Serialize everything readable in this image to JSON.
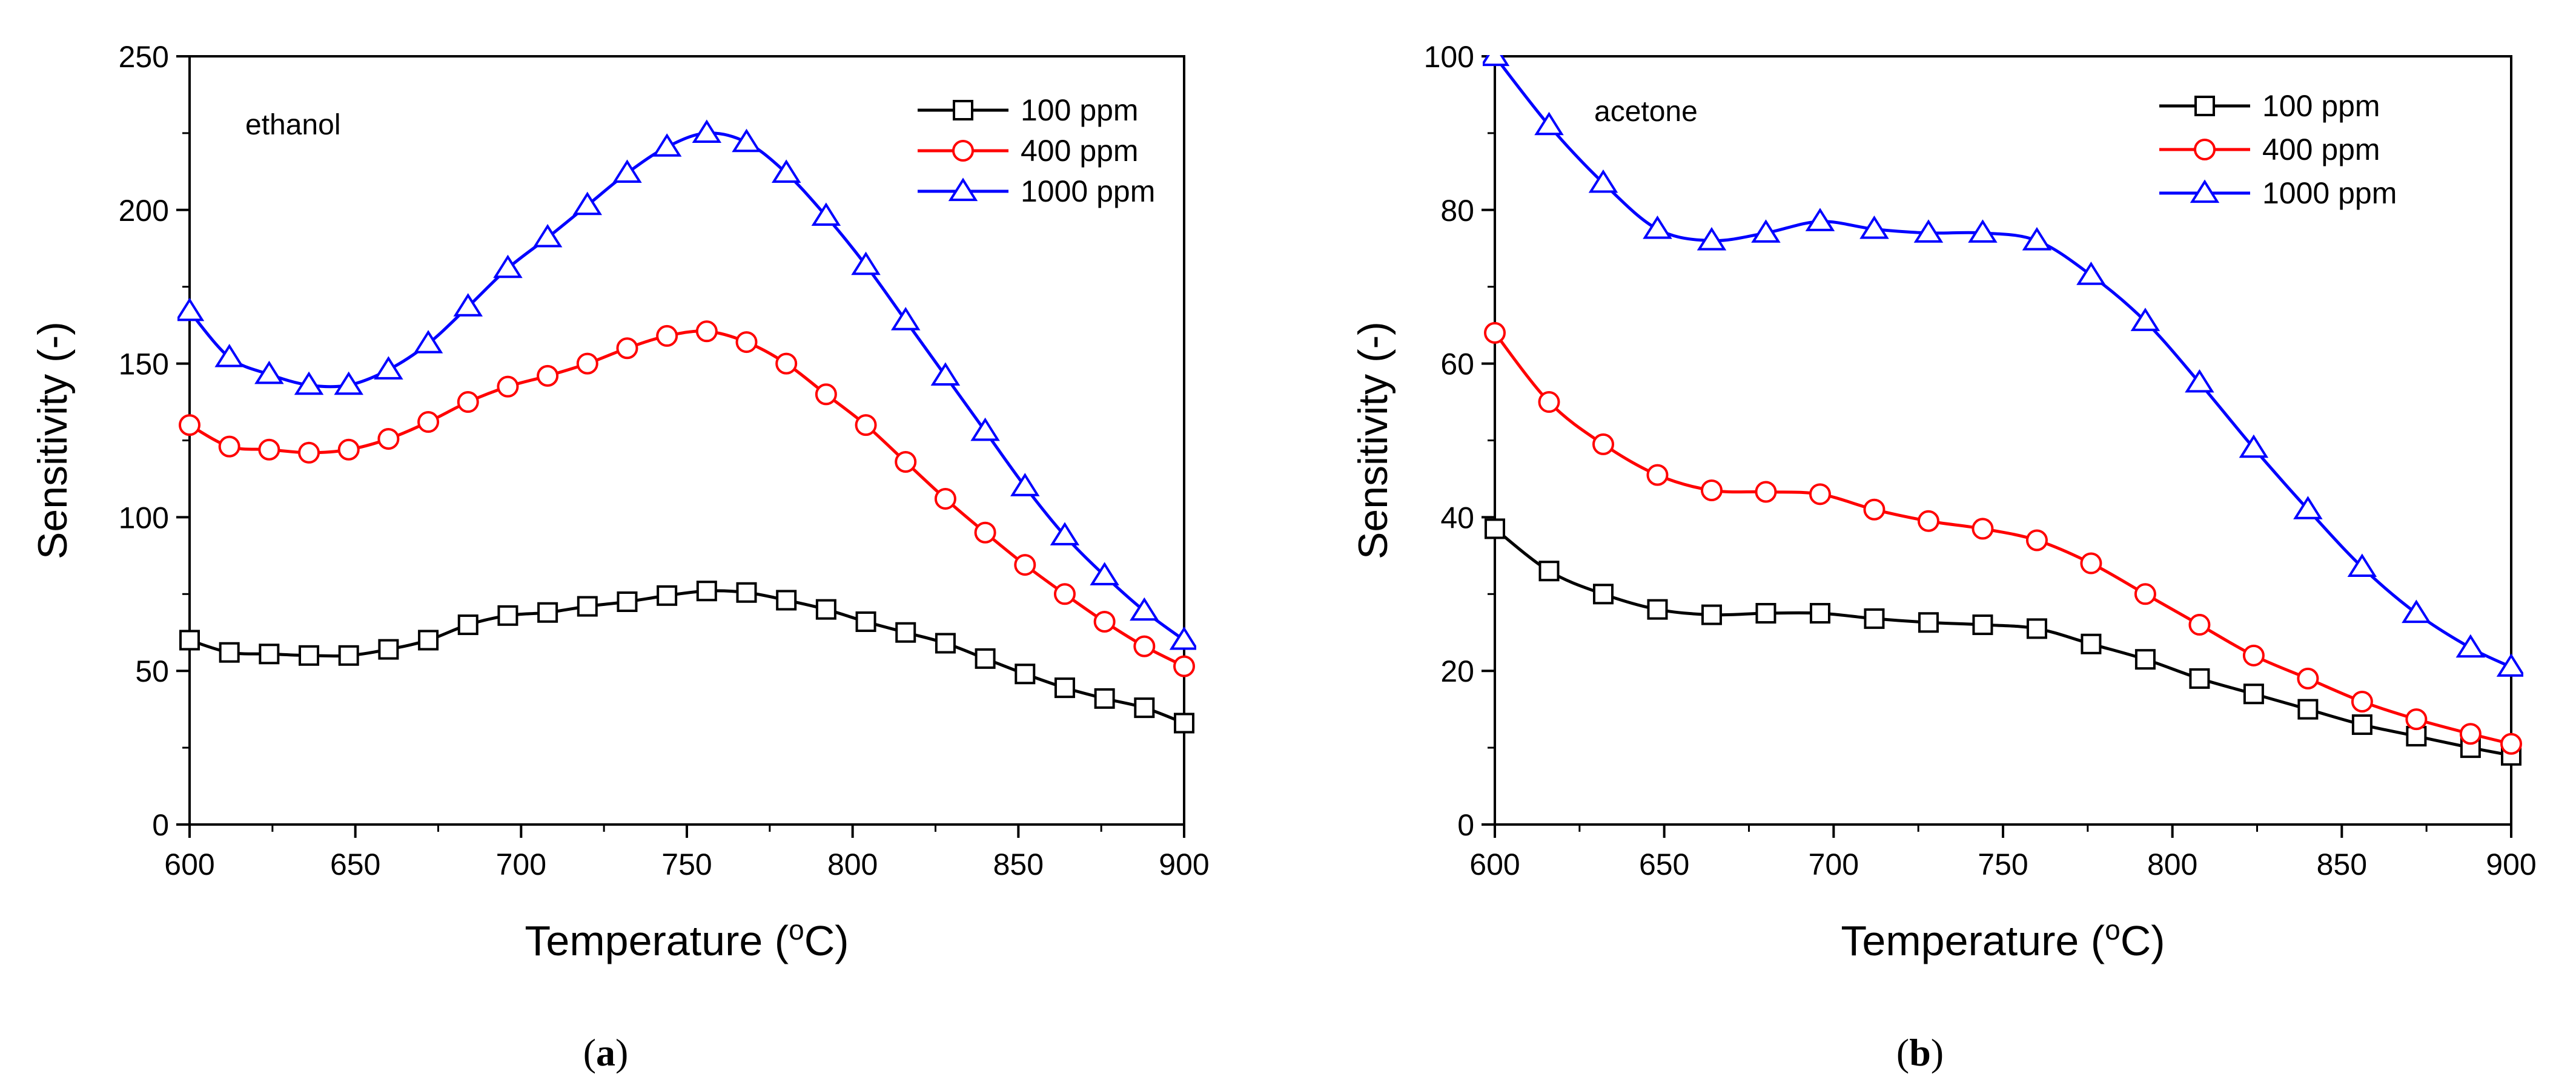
{
  "chart_data": [
    {
      "type": "line",
      "panel_label": "a",
      "annotation": "ethanol",
      "xlabel": "Temperature (",
      "xlabel_sup": "o",
      "xlabel_unit": "C)",
      "ylabel": "Sensitivity (-)",
      "xlim": [
        600,
        900
      ],
      "ylim": [
        0,
        250
      ],
      "xticks": [
        600,
        650,
        700,
        750,
        800,
        850,
        900
      ],
      "yticks": [
        0,
        50,
        100,
        150,
        200,
        250
      ],
      "legend_position": "top-right",
      "x": [
        600,
        612,
        624,
        636,
        648,
        660,
        672,
        684,
        696,
        708,
        720,
        732,
        744,
        756,
        768,
        780,
        792,
        804,
        816,
        828,
        840,
        852,
        864,
        876,
        888,
        900
      ],
      "series": [
        {
          "name": "100 ppm",
          "color": "#000000",
          "marker": "square",
          "values": [
            60,
            56,
            55.5,
            55,
            55,
            57,
            60,
            65,
            68,
            69,
            71,
            72.5,
            74.5,
            76,
            75.5,
            73,
            70,
            66,
            62.5,
            59,
            54,
            49,
            44.5,
            41,
            38,
            33
          ]
        },
        {
          "name": "400 ppm",
          "color": "#ff0000",
          "marker": "circle",
          "values": [
            130,
            123,
            122,
            121,
            122,
            125.5,
            131,
            137.5,
            142.5,
            146,
            150,
            155,
            159,
            160.5,
            157,
            150,
            140,
            130,
            118,
            106,
            95,
            84.5,
            75,
            66,
            58,
            51.5
          ]
        },
        {
          "name": "1000 ppm",
          "color": "#0000ff",
          "marker": "triangle",
          "values": [
            167,
            152,
            146.5,
            143,
            143,
            148,
            156.5,
            168.5,
            181,
            191,
            201.5,
            212,
            220.5,
            225,
            222,
            212,
            198,
            182,
            164,
            146,
            128,
            110,
            94,
            81,
            69.5,
            60
          ]
        }
      ]
    },
    {
      "type": "line",
      "panel_label": "b",
      "annotation": "acetone",
      "xlabel": "Temperature (",
      "xlabel_sup": "o",
      "xlabel_unit": "C)",
      "ylabel": "Sensitivity (-)",
      "xlim": [
        600,
        900
      ],
      "ylim": [
        0,
        100
      ],
      "xticks": [
        600,
        650,
        700,
        750,
        800,
        850,
        900
      ],
      "yticks": [
        0,
        20,
        40,
        60,
        80,
        100
      ],
      "legend_position": "top-right",
      "x": [
        600,
        616,
        632,
        648,
        664,
        680,
        696,
        712,
        728,
        744,
        760,
        776,
        792,
        808,
        824,
        840,
        856,
        872,
        888,
        900
      ],
      "series": [
        {
          "name": "100 ppm",
          "color": "#000000",
          "marker": "square",
          "values": [
            38.5,
            33,
            30,
            28,
            27.3,
            27.5,
            27.5,
            26.8,
            26.3,
            26,
            25.5,
            23.5,
            21.5,
            19,
            17,
            15,
            13,
            11.5,
            10,
            9
          ]
        },
        {
          "name": "400 ppm",
          "color": "#ff0000",
          "marker": "circle",
          "values": [
            64,
            55,
            49.5,
            45.5,
            43.5,
            43.3,
            43,
            41,
            39.5,
            38.5,
            37,
            34,
            30,
            26,
            22,
            19,
            16,
            13.7,
            11.8,
            10.5
          ]
        },
        {
          "name": "1000 ppm",
          "color": "#0000ff",
          "marker": "triangle",
          "values": [
            100,
            91,
            83.5,
            77.5,
            76,
            77,
            78.5,
            77.5,
            77,
            77,
            76,
            71.5,
            65.5,
            57.5,
            49,
            41,
            33.5,
            27.5,
            23,
            20.5
          ]
        }
      ]
    }
  ]
}
